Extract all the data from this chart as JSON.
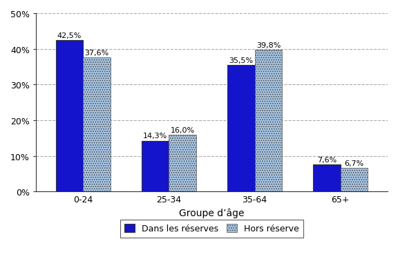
{
  "categories": [
    "0-24",
    "25-34",
    "35-64",
    "65+"
  ],
  "series1_label": "Dans les réserves",
  "series2_label": "Hors réserve",
  "series1_values": [
    42.5,
    14.3,
    35.5,
    7.6
  ],
  "series2_values": [
    37.6,
    16.0,
    39.8,
    6.7
  ],
  "series1_labels": [
    "42,5%",
    "14,3%",
    "35,5%",
    "7,6%"
  ],
  "series2_labels": [
    "37,6%",
    "16,0%",
    "39,8%",
    "6,7%"
  ],
  "series1_color": "#1414cc",
  "series2_color": "#aaccee",
  "series2_hatch": ".....",
  "xlabel": "Groupe d’âge",
  "ylim": [
    0,
    50
  ],
  "yticks": [
    0,
    10,
    20,
    30,
    40,
    50
  ],
  "ytick_labels": [
    "0%",
    "10%",
    "20%",
    "30%",
    "40%",
    "50%"
  ],
  "bar_width": 0.32,
  "grid_color": "#aaaaaa",
  "background_color": "#ffffff",
  "font_size": 9,
  "label_font_size": 8
}
